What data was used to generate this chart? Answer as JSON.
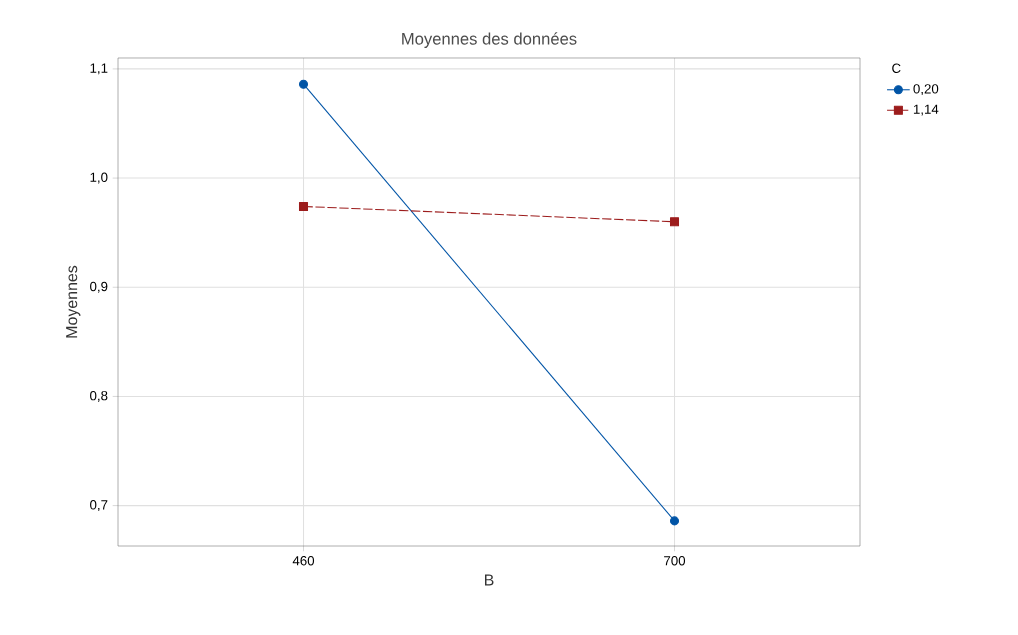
{
  "chart_data": {
    "type": "line",
    "title": "Moyennes des données",
    "xlabel": "B",
    "ylabel": "Moyennes",
    "legend_title": "C",
    "categories": [
      "460",
      "700"
    ],
    "series": [
      {
        "name": "0,20",
        "color": "#0054a6",
        "values": [
          1.086,
          0.686
        ],
        "marker": "circle",
        "line_style": "solid"
      },
      {
        "name": "1,14",
        "color": "#9c1c1c",
        "values": [
          0.974,
          0.96
        ],
        "marker": "square",
        "line_style": "dashed"
      }
    ],
    "ylim": [
      0.663,
      1.11
    ],
    "yticks": [
      {
        "value": 0.7,
        "label": "0,7"
      },
      {
        "value": 0.8,
        "label": "0,8"
      },
      {
        "value": 0.9,
        "label": "0,9"
      },
      {
        "value": 1.0,
        "label": "1,0"
      },
      {
        "value": 1.1,
        "label": "1,1"
      }
    ],
    "grid": true,
    "legend": "top right"
  }
}
